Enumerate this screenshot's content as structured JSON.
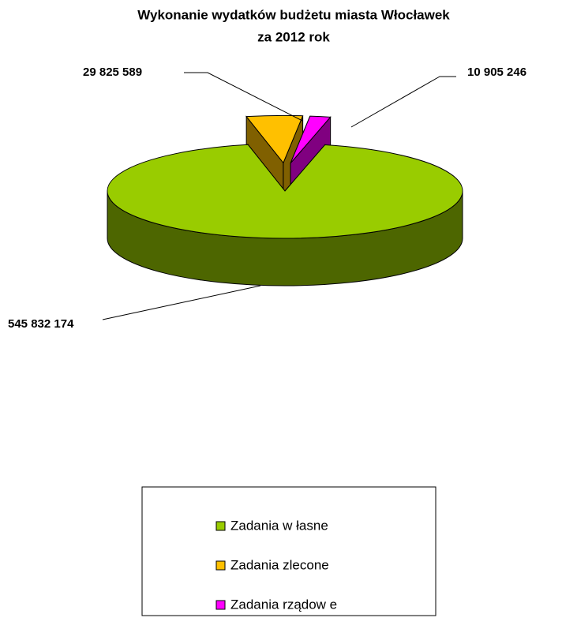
{
  "chart_data": {
    "type": "pie3d",
    "title": [
      "Wykonanie wydatków budżetu miasta Włocławek",
      "za 2012 rok"
    ],
    "categories": [
      "Zadania w łasne",
      "Zadania zlecone",
      "Zadania rządow e"
    ],
    "values": [
      545832174,
      29825589,
      10905246
    ],
    "value_labels": [
      "545 832 174",
      "29 825 589",
      "10 905 246"
    ],
    "colors": [
      "#99cc00",
      "#ffc000",
      "#ff00ff"
    ],
    "side_colors": [
      "#4d6600",
      "#806000",
      "#800080"
    ],
    "exploded": [
      false,
      true,
      true
    ],
    "legend": "bottom"
  }
}
